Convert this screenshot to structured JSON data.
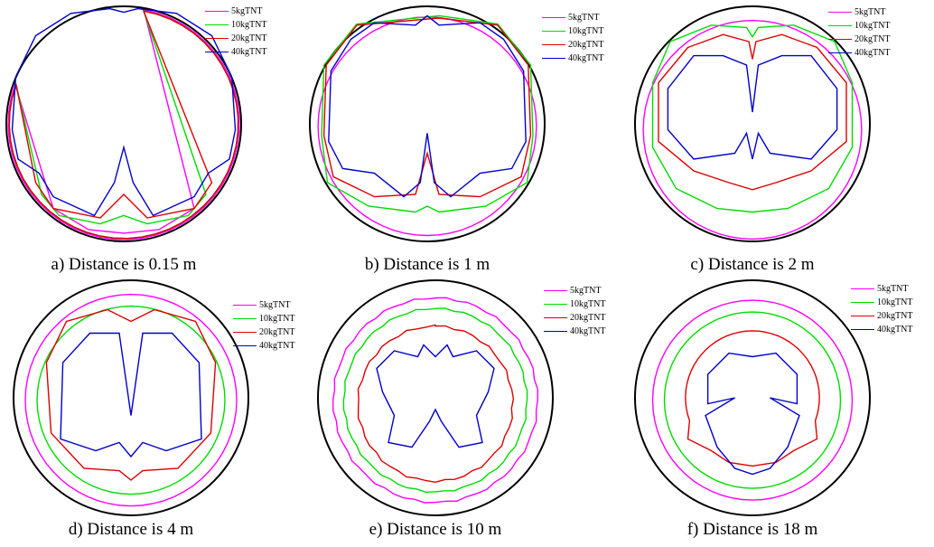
{
  "figure": {
    "legend": [
      {
        "label": "5kgTNT",
        "color": "#ff00ff"
      },
      {
        "label": "10kgTNT",
        "color": "#00dd00"
      },
      {
        "label": "20kgTNT",
        "color": "#dd0000"
      },
      {
        "label": "40kgTNT",
        "color": "#0000cc"
      }
    ],
    "panels": [
      {
        "caption": "a) Distance is 0.15 m"
      },
      {
        "caption": "b) Distance is 1 m"
      },
      {
        "caption": "c) Distance is 2 m"
      },
      {
        "caption": "d) Distance is 4 m"
      },
      {
        "caption": "e) Distance is 10 m"
      },
      {
        "caption": "f) Distance is 18 m"
      }
    ]
  }
}
